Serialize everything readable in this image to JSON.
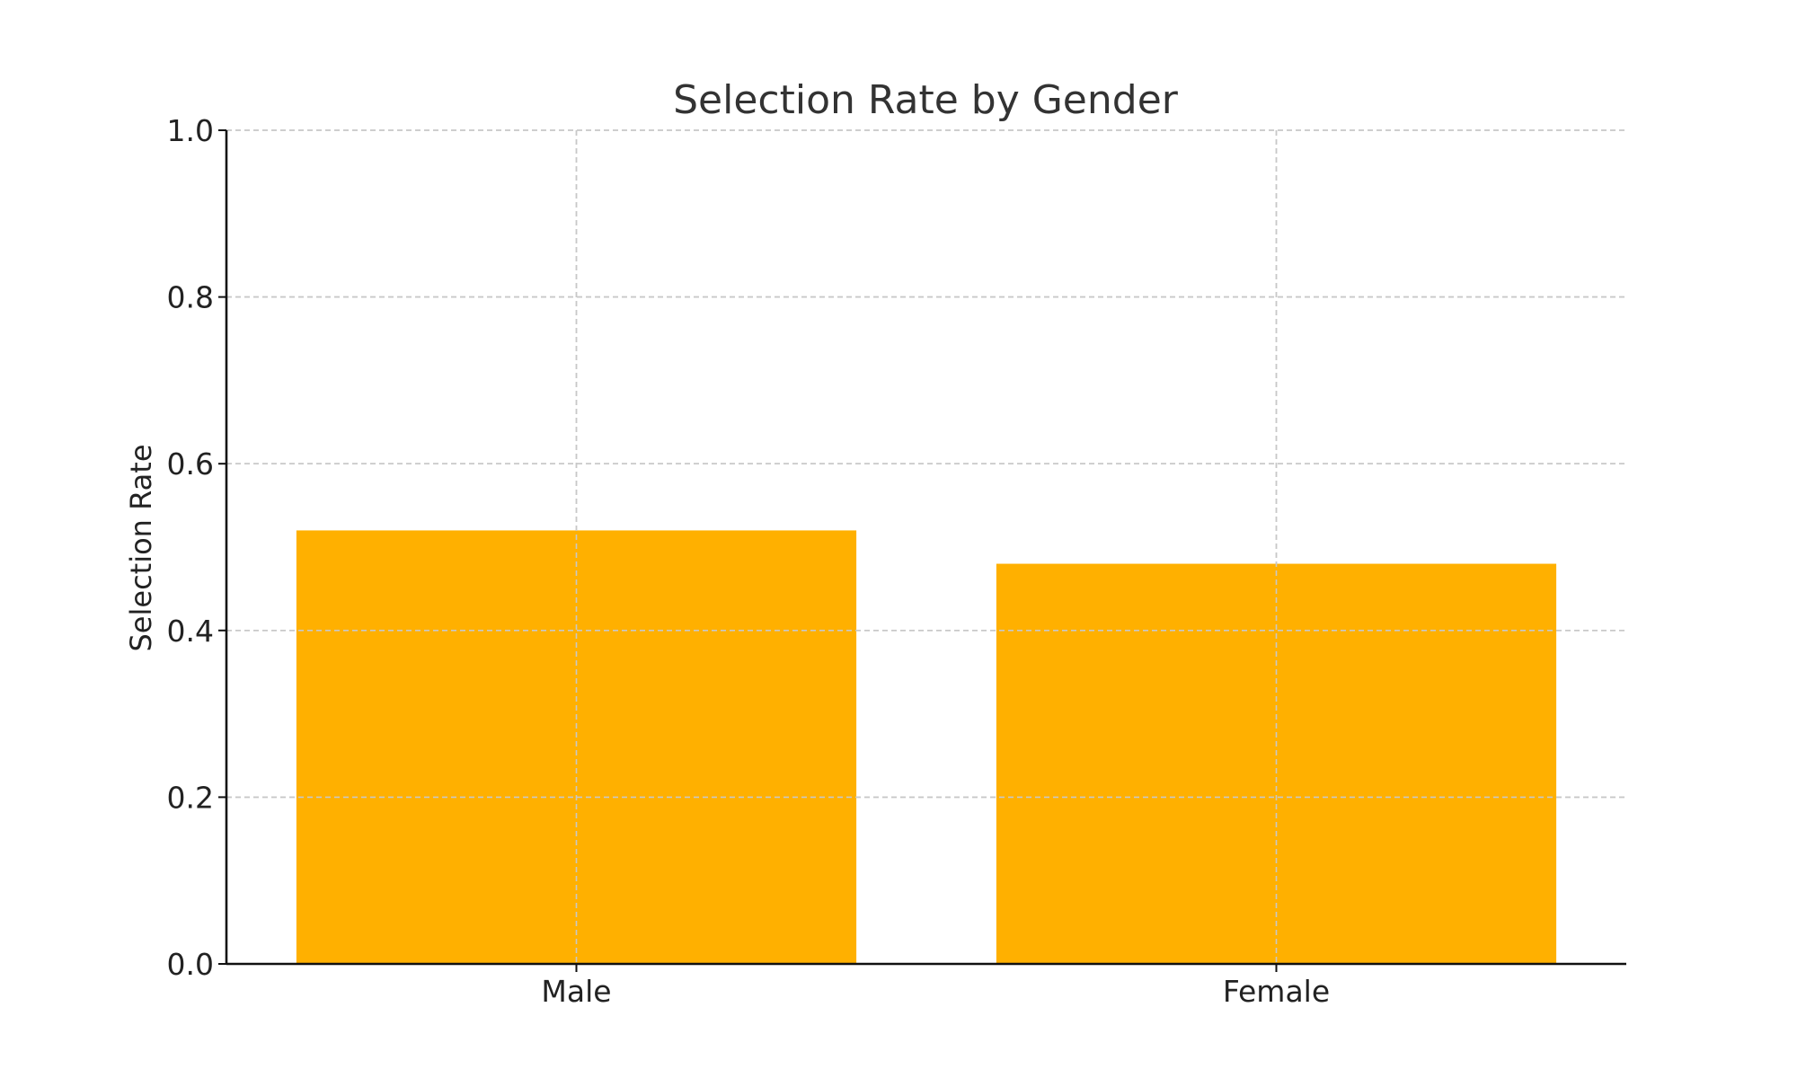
{
  "chart_data": {
    "type": "bar",
    "title": "Selection Rate by Gender",
    "xlabel": "",
    "ylabel": "Selection Rate",
    "categories": [
      "Male",
      "Female"
    ],
    "values": [
      0.52,
      0.48
    ],
    "ylim": [
      0,
      1.0
    ],
    "yticks": [
      "0.0",
      "0.2",
      "0.4",
      "0.6",
      "0.8",
      "1.0"
    ],
    "grid": true,
    "bar_color": "#FFB000"
  }
}
